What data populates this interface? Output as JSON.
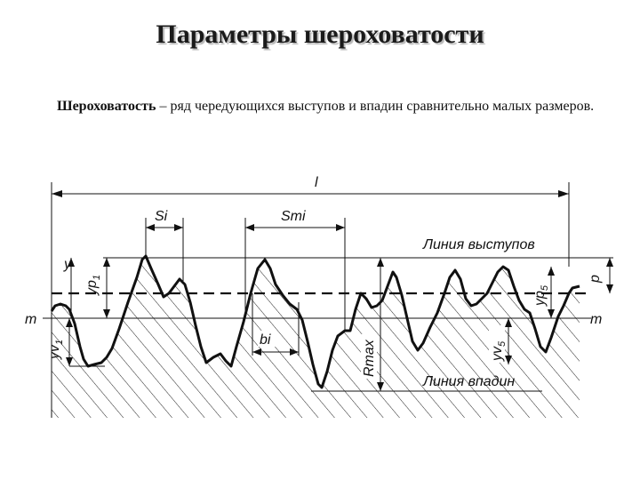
{
  "title": "Параметры шероховатости",
  "definition": {
    "term": "Шероховатость",
    "text": " – ряд чередующихся выступов и впадин сравнительно малых размеров."
  },
  "diagram": {
    "labels": {
      "l": "l",
      "si": "Si",
      "smi": "Smi",
      "peak_line": "Линия выступов",
      "valley_line": "Линия впадин",
      "y": "y",
      "yp1": "yp",
      "yp1_sub": "1",
      "yv1": "yv",
      "yv1_sub": "1",
      "m_left": "m",
      "m_right": "m",
      "bi": "bi",
      "rmax": "Rmax",
      "yv5": "yv",
      "yv5_sub": "5",
      "yp5": "yp",
      "yp5_sub": "5",
      "p": "p"
    }
  }
}
